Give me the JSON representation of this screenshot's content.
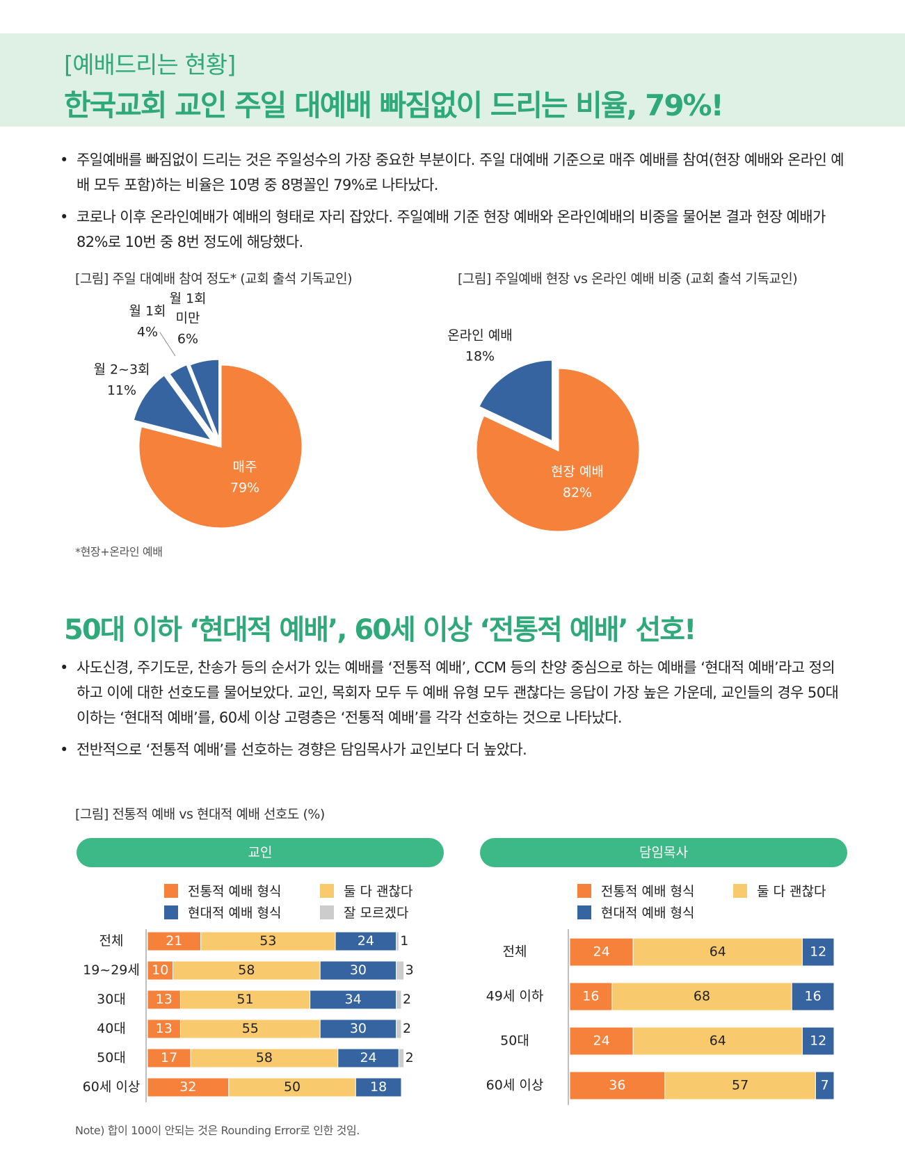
{
  "header": {
    "kicker": "[예배드리는 현황]",
    "title": "한국교회 교인 주일 대예배 빠짐없이 드리는 비율, 79%!"
  },
  "section1": {
    "bullets": [
      "주일예배를 빠짐없이 드리는 것은 주일성수의 가장 중요한 부분이다. 주일 대예배 기준으로 매주 예배를 참여(현장 예배와 온라인 예배 모두 포함)하는 비율은 10명 중 8명꼴인 79%로 나타났다.",
      "코로나 이후 온라인예배가 예배의 형태로 자리 잡았다. 주일예배 기준 현장 예배와 온라인예배의 비중을 물어본 결과 현장 예배가 82%로 10번 중 8번 정도에 해당했다."
    ],
    "fig1_caption": "[그림] 주일 대예배 참여 정도* (교회 출석 기독교인)",
    "fig2_caption": "[그림] 주일예배 현장 vs 온라인 예배 비중 (교회 출석 기독교인)",
    "footnote": "*현장+온라인 예배"
  },
  "section2": {
    "title": "50대 이하 ‘현대적 예배’, 60세 이상 ‘전통적 예배’ 선호!",
    "bullets": [
      "사도신경, 주기도문, 찬송가 등의 순서가 있는 예배를 ‘전통적 예배’, CCM 등의 찬양 중심으로 하는 예배를 ‘현대적 예배’라고 정의하고 이에 대한 선호도를 물어보았다. 교인, 목회자 모두 두 예배 유형 모두 괜찮다는 응답이 가장 높은 가운데, 교인들의 경우 50대 이하는 ‘현대적 예배’를, 60세 이상 고령층은 ‘전통적 예배’를 각각 선호하는 것으로 나타났다.",
      "전반적으로 ‘전통적 예배’를 선호하는 경향은 담임목사가 교인보다 더 높았다."
    ],
    "fig_caption": "[그림] 전통적 예배 vs 현대적 예배 선호도 (%)",
    "note": "Note) 합이 100이 안되는 것은 Rounding Error로 인한 것임."
  },
  "colors": {
    "orange": "#f5813b",
    "yellow": "#f9c96e",
    "blue": "#3564a0",
    "gray": "#cccccc",
    "green": "#3db887"
  },
  "chart_data": [
    {
      "type": "pie",
      "title": "[그림] 주일 대예배 참여 정도* (교회 출석 기독교인)",
      "slices": [
        {
          "label": "매주",
          "value": 79
        },
        {
          "label": "월 2~3회",
          "value": 11
        },
        {
          "label": "월 1회",
          "value": 4
        },
        {
          "label": "월 1회 미만",
          "value": 6
        }
      ]
    },
    {
      "type": "pie",
      "title": "[그림] 주일예배 현장 vs 온라인 예배 비중 (교회 출석 기독교인)",
      "slices": [
        {
          "label": "현장 예배",
          "value": 82
        },
        {
          "label": "온라인 예배",
          "value": 18
        }
      ]
    },
    {
      "type": "bar",
      "stacked": true,
      "orientation": "horizontal",
      "title": "교인",
      "categories": [
        "전체",
        "19~29세",
        "30대",
        "40대",
        "50대",
        "60세 이상"
      ],
      "series": [
        {
          "name": "전통적 예배 형식",
          "values": [
            21,
            10,
            13,
            13,
            17,
            32
          ]
        },
        {
          "name": "둘 다 괜찮다",
          "values": [
            53,
            58,
            51,
            55,
            58,
            50
          ]
        },
        {
          "name": "현대적 예배 형식",
          "values": [
            24,
            30,
            34,
            30,
            24,
            18
          ]
        },
        {
          "name": "잘 모르겠다",
          "values": [
            1,
            3,
            2,
            2,
            2,
            0
          ]
        }
      ]
    },
    {
      "type": "bar",
      "stacked": true,
      "orientation": "horizontal",
      "title": "담임목사",
      "categories": [
        "전체",
        "49세 이하",
        "50대",
        "60세 이상"
      ],
      "series": [
        {
          "name": "전통적 예배 형식",
          "values": [
            24,
            16,
            24,
            36
          ]
        },
        {
          "name": "둘 다 괜찮다",
          "values": [
            64,
            68,
            64,
            57
          ]
        },
        {
          "name": "현대적 예배 형식",
          "values": [
            12,
            16,
            12,
            7
          ]
        }
      ]
    }
  ]
}
